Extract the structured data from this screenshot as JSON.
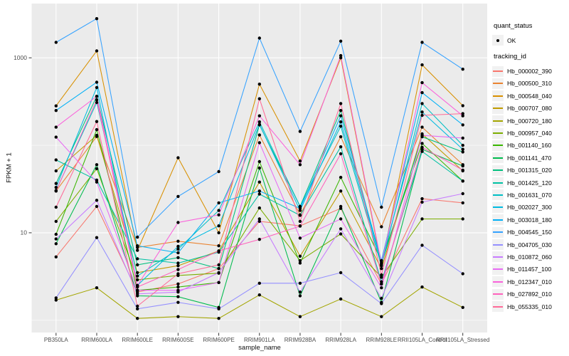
{
  "figure": {
    "background": "#FFFFFF",
    "panel_background": "#EBEBEB",
    "grid_color": "#FFFFFF",
    "tick_mark_color": "#333333",
    "axis_text_color": "#4D4D4D",
    "point_color": "#000000"
  },
  "chart_data": {
    "type": "line",
    "title": "",
    "xlabel": "sample_name",
    "ylabel": "FPKM + 1",
    "y_scale": "log10",
    "grid": true,
    "legend_position": "right",
    "y_ticks": [
      {
        "label": "1000",
        "value": 1000
      },
      {
        "label": "10",
        "value": 10
      }
    ],
    "y_minor_values": [
      1,
      100
    ],
    "y_range_log10": [
      -0.14,
      3.62
    ],
    "categories": [
      "PB350LA",
      "RRIM600LA",
      "RRIM600LE",
      "RRIM600SE",
      "RRIM600PE",
      "RRIM901LA",
      "RRIM928BA",
      "RRIM928LA",
      "RRIM928LE",
      "RRII105LA_Control",
      "RRII105LA_Stressed"
    ],
    "legend": {
      "quant_title": "quant_status",
      "quant_items": [
        {
          "label": "OK",
          "marker": "point",
          "color": "#000000"
        }
      ],
      "series_title": "tracking_id"
    },
    "series": [
      {
        "name": "Hb_000002_390",
        "color": "#F8766D",
        "values": [
          5.3,
          20,
          2.1,
          2.6,
          3.9,
          13.5,
          12,
          19,
          2.6,
          24.5,
          22
        ]
      },
      {
        "name": "Hb_000500_310",
        "color": "#EA8331",
        "values": [
          30,
          126,
          6.8,
          8.0,
          7.1,
          131,
          16,
          125,
          11.7,
          161,
          60
        ]
      },
      {
        "name": "Hb_000548_040",
        "color": "#D89000",
        "values": [
          282,
          1200,
          6.3,
          72,
          10,
          500,
          66,
          1000,
          4.2,
          830,
          284
        ]
      },
      {
        "name": "Hb_000707_080",
        "color": "#C09B00",
        "values": [
          51,
          130,
          3.5,
          4.2,
          6.2,
          38,
          5.4,
          30,
          3.9,
          135,
          51
        ]
      },
      {
        "name": "Hb_000720_180",
        "color": "#A3A500",
        "values": [
          1.7,
          2.35,
          1.05,
          1.1,
          1.05,
          1.95,
          1.1,
          1.75,
          1.1,
          2.4,
          1.4
        ]
      },
      {
        "name": "Hb_000957_040",
        "color": "#7CAE00",
        "values": [
          13.5,
          54,
          2.9,
          3.25,
          3.45,
          19.2,
          4.8,
          9.7,
          3.1,
          14.4,
          14.4
        ]
      },
      {
        "name": "Hb_001140_160",
        "color": "#39B600",
        "values": [
          9.6,
          151,
          2.2,
          2.4,
          2.7,
          65,
          4.5,
          43,
          4.8,
          105,
          39
        ]
      },
      {
        "name": "Hb_001141_470",
        "color": "#00BB4E",
        "values": [
          7.5,
          60,
          1.9,
          1.86,
          1.4,
          55,
          1.9,
          20,
          1.6,
          90,
          58
        ]
      },
      {
        "name": "Hb_001315_020",
        "color": "#00BF7D",
        "values": [
          36.6,
          363,
          4.3,
          5.2,
          3.9,
          171,
          20,
          250,
          4.4,
          125,
          84
        ]
      },
      {
        "name": "Hb_001425_120",
        "color": "#00C1A3",
        "values": [
          68,
          40,
          5.05,
          4.5,
          6.0,
          27.7,
          15.8,
          96,
          2.75,
          85,
          39
        ]
      },
      {
        "name": "Hb_001631_070",
        "color": "#00BFC4",
        "values": [
          30.4,
          309,
          3.2,
          6.5,
          18,
          185,
          20,
          165,
          4.2,
          300,
          100
        ]
      },
      {
        "name": "Hb_002027_300",
        "color": "#00BAE0",
        "values": [
          33,
          458,
          2.5,
          7.0,
          12,
          173,
          18,
          185,
          4.6,
          240,
          90
        ]
      },
      {
        "name": "Hb_003018_180",
        "color": "#00B0F6",
        "values": [
          250,
          526,
          7.1,
          5.9,
          22,
          30,
          19,
          217,
          4.8,
          400,
          171
        ]
      },
      {
        "name": "Hb_004545_150",
        "color": "#35A2FF",
        "values": [
          1500,
          2800,
          8.9,
          26,
          50,
          1680,
          144,
          1550,
          19.6,
          1500,
          740
        ]
      },
      {
        "name": "Hb_004705_030",
        "color": "#9590FF",
        "values": [
          1.8,
          8.8,
          1.35,
          1.6,
          1.35,
          2.65,
          2.65,
          3.5,
          1.55,
          7.2,
          3.4
        ]
      },
      {
        "name": "Hb_010872_060",
        "color": "#C77CFF",
        "values": [
          8.5,
          23.5,
          2.0,
          2.1,
          3.5,
          14.4,
          2.1,
          11.1,
          1.78,
          22.4,
          28
        ]
      },
      {
        "name": "Hb_011457_100",
        "color": "#E76BF3",
        "values": [
          124,
          38,
          2.2,
          2.2,
          2.7,
          107,
          8.7,
          14.4,
          2.35,
          130,
          121
        ]
      },
      {
        "name": "Hb_012347_010",
        "color": "#FA62DB",
        "values": [
          161,
          363,
          2.5,
          13.1,
          16,
          217,
          60,
          1060,
          4.4,
          520,
          217
        ]
      },
      {
        "name": "Hb_027892_010",
        "color": "#FF62BC",
        "values": [
          30,
          331,
          2.4,
          3.8,
          6.2,
          8.4,
          11.9,
          80,
          2.6,
          95,
          52
        ]
      },
      {
        "name": "Hb_055335_010",
        "color": "#FF6A98",
        "values": [
          19.6,
          187,
          1.45,
          3.4,
          4.3,
          340,
          13.5,
          300,
          3.3,
          220,
          230
        ]
      }
    ]
  }
}
